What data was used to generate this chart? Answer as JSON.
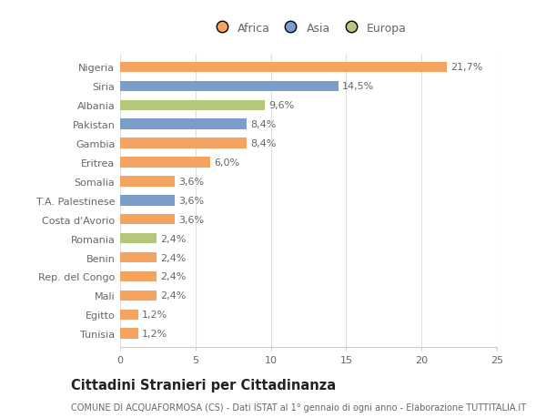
{
  "countries": [
    "Nigeria",
    "Siria",
    "Albania",
    "Pakistan",
    "Gambia",
    "Eritrea",
    "Somalia",
    "T.A. Palestinese",
    "Costa d'Avorio",
    "Romania",
    "Benin",
    "Rep. del Congo",
    "Mali",
    "Egitto",
    "Tunisia"
  ],
  "values": [
    21.7,
    14.5,
    9.6,
    8.4,
    8.4,
    6.0,
    3.6,
    3.6,
    3.6,
    2.4,
    2.4,
    2.4,
    2.4,
    1.2,
    1.2
  ],
  "labels": [
    "21,7%",
    "14,5%",
    "9,6%",
    "8,4%",
    "8,4%",
    "6,0%",
    "3,6%",
    "3,6%",
    "3,6%",
    "2,4%",
    "2,4%",
    "2,4%",
    "2,4%",
    "1,2%",
    "1,2%"
  ],
  "continents": [
    "Africa",
    "Asia",
    "Europa",
    "Asia",
    "Africa",
    "Africa",
    "Africa",
    "Asia",
    "Africa",
    "Europa",
    "Africa",
    "Africa",
    "Africa",
    "Africa",
    "Africa"
  ],
  "colors": {
    "Africa": "#F4A460",
    "Asia": "#7B9DC9",
    "Europa": "#B5C77A"
  },
  "xlim": [
    0,
    25
  ],
  "xticks": [
    0,
    5,
    10,
    15,
    20,
    25
  ],
  "title": "Cittadini Stranieri per Cittadinanza",
  "subtitle": "COMUNE DI ACQUAFORMOSA (CS) - Dati ISTAT al 1° gennaio di ogni anno - Elaborazione TUTTITALIA.IT",
  "background_color": "#ffffff",
  "bar_height": 0.55,
  "label_fontsize": 8.0,
  "tick_fontsize": 8.0,
  "title_fontsize": 10.5,
  "subtitle_fontsize": 7.0,
  "grid_color": "#e0e0e0",
  "text_color": "#666666"
}
